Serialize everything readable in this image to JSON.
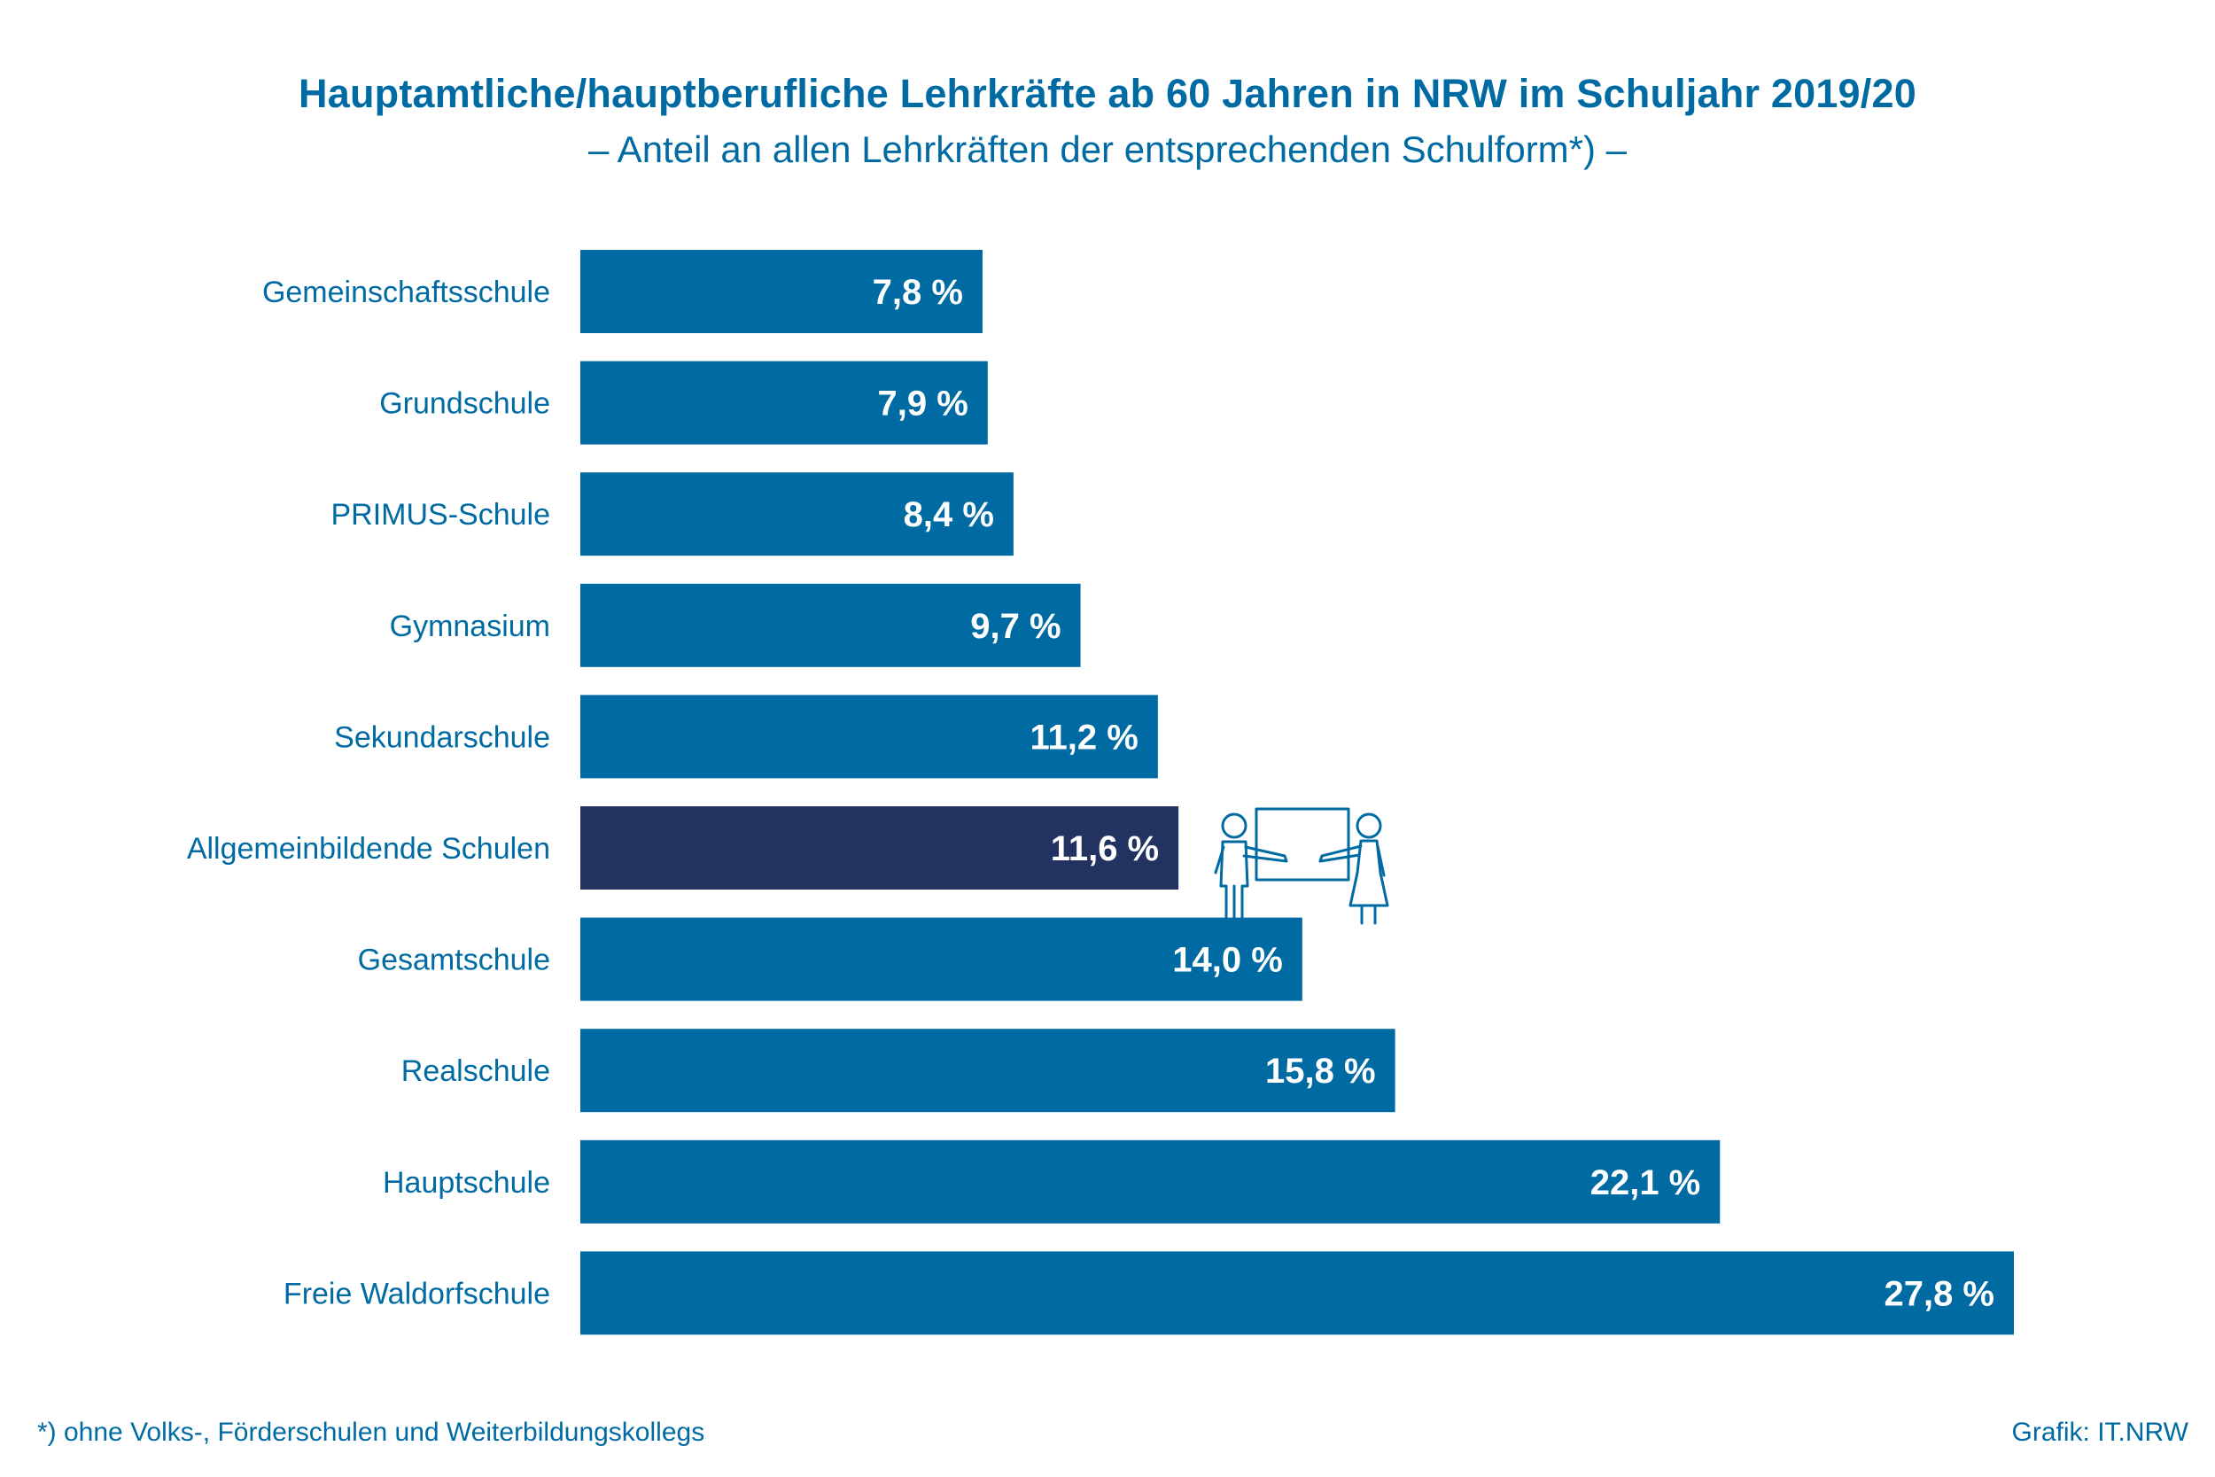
{
  "chart_data": {
    "type": "bar",
    "orientation": "horizontal",
    "title": "Hauptamtliche/hauptberufliche Lehrkräfte ab 60 Jahren in NRW im Schuljahr 2019/20",
    "subtitle": "– Anteil an allen Lehrkräften der entsprechenden Schulform*) –",
    "categories": [
      "Gemeinschaftsschule",
      "Grundschule",
      "PRIMUS-Schule",
      "Gymnasium",
      "Sekundarschule",
      "Allgemeinbildende Schulen",
      "Gesamtschule",
      "Realschule",
      "Hauptschule",
      "Freie Waldorfschule"
    ],
    "values": [
      7.8,
      7.9,
      8.4,
      9.7,
      11.2,
      11.6,
      14.0,
      15.8,
      22.1,
      27.8
    ],
    "value_labels": [
      "7,8 %",
      "7,9 %",
      "8,4 %",
      "9,7 %",
      "11,2 %",
      "11,6 %",
      "14,0 %",
      "15,8 %",
      "22,1 %",
      "27,8 %"
    ],
    "highlight_category": "Allgemeinbildende Schulen",
    "xlim": [
      0,
      27.8
    ],
    "grid": false,
    "legend": false
  },
  "colors": {
    "bar": "#006aa3",
    "bar_highlight": "#223361",
    "text": "#006aa3",
    "value_label": "#ffffff"
  },
  "illustration": "teachers-at-whiteboard-icon",
  "footnote": "*)  ohne Volks-, Förderschulen und Weiterbildungskollegs",
  "credit": "Grafik: IT.NRW"
}
